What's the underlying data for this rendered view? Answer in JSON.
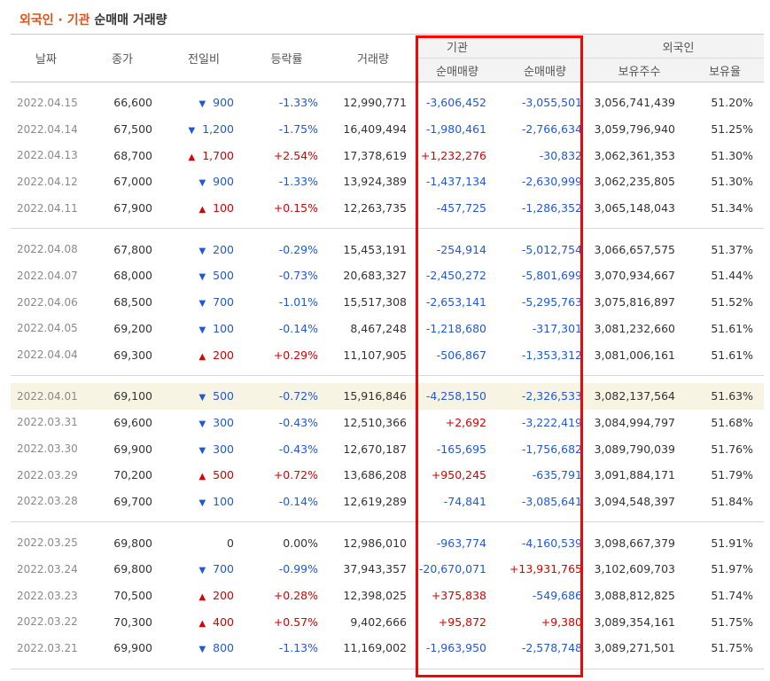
{
  "title": {
    "part1": "외국인 · 기관",
    "part2": " 순매매 거래량"
  },
  "headers": {
    "date": "날짜",
    "close": "종가",
    "change": "전일비",
    "rate": "등락률",
    "volume": "거래량",
    "inst_group": "기관",
    "inst_net": "순매매량",
    "foreign_group": "외국인",
    "foreign_net": "순매매량",
    "holdings": "보유주수",
    "ratio": "보유율"
  },
  "colors": {
    "up": "#d80000",
    "down": "#1f5ad6",
    "highlight_box": "#ff0000",
    "title_accent": "#e0501b"
  },
  "groups": [
    [
      {
        "date": "2022.04.15",
        "close": "66,600",
        "dir": "down",
        "change": "900",
        "rate": "-1.33%",
        "volume": "12,990,771",
        "inst": "-3,606,452",
        "foreign": "-3,055,501",
        "holdings": "3,056,741,439",
        "ratio": "51.20%"
      },
      {
        "date": "2022.04.14",
        "close": "67,500",
        "dir": "down",
        "change": "1,200",
        "rate": "-1.75%",
        "volume": "16,409,494",
        "inst": "-1,980,461",
        "foreign": "-2,766,634",
        "holdings": "3,059,796,940",
        "ratio": "51.25%"
      },
      {
        "date": "2022.04.13",
        "close": "68,700",
        "dir": "up",
        "change": "1,700",
        "rate": "+2.54%",
        "volume": "17,378,619",
        "inst": "+1,232,276",
        "foreign": "-30,832",
        "holdings": "3,062,361,353",
        "ratio": "51.30%"
      },
      {
        "date": "2022.04.12",
        "close": "67,000",
        "dir": "down",
        "change": "900",
        "rate": "-1.33%",
        "volume": "13,924,389",
        "inst": "-1,437,134",
        "foreign": "-2,630,999",
        "holdings": "3,062,235,805",
        "ratio": "51.30%"
      },
      {
        "date": "2022.04.11",
        "close": "67,900",
        "dir": "up",
        "change": "100",
        "rate": "+0.15%",
        "volume": "12,263,735",
        "inst": "-457,725",
        "foreign": "-1,286,352",
        "holdings": "3,065,148,043",
        "ratio": "51.34%"
      }
    ],
    [
      {
        "date": "2022.04.08",
        "close": "67,800",
        "dir": "down",
        "change": "200",
        "rate": "-0.29%",
        "volume": "15,453,191",
        "inst": "-254,914",
        "foreign": "-5,012,754",
        "holdings": "3,066,657,575",
        "ratio": "51.37%"
      },
      {
        "date": "2022.04.07",
        "close": "68,000",
        "dir": "down",
        "change": "500",
        "rate": "-0.73%",
        "volume": "20,683,327",
        "inst": "-2,450,272",
        "foreign": "-5,801,699",
        "holdings": "3,070,934,667",
        "ratio": "51.44%"
      },
      {
        "date": "2022.04.06",
        "close": "68,500",
        "dir": "down",
        "change": "700",
        "rate": "-1.01%",
        "volume": "15,517,308",
        "inst": "-2,653,141",
        "foreign": "-5,295,763",
        "holdings": "3,075,816,897",
        "ratio": "51.52%"
      },
      {
        "date": "2022.04.05",
        "close": "69,200",
        "dir": "down",
        "change": "100",
        "rate": "-0.14%",
        "volume": "8,467,248",
        "inst": "-1,218,680",
        "foreign": "-317,301",
        "holdings": "3,081,232,660",
        "ratio": "51.61%"
      },
      {
        "date": "2022.04.04",
        "close": "69,300",
        "dir": "up",
        "change": "200",
        "rate": "+0.29%",
        "volume": "11,107,905",
        "inst": "-506,867",
        "foreign": "-1,353,312",
        "holdings": "3,081,006,161",
        "ratio": "51.61%"
      }
    ],
    [
      {
        "date": "2022.04.01",
        "close": "69,100",
        "dir": "down",
        "change": "500",
        "rate": "-0.72%",
        "volume": "15,916,846",
        "inst": "-4,258,150",
        "foreign": "-2,326,533",
        "holdings": "3,082,137,564",
        "ratio": "51.63%",
        "highlight": true
      },
      {
        "date": "2022.03.31",
        "close": "69,600",
        "dir": "down",
        "change": "300",
        "rate": "-0.43%",
        "volume": "12,510,366",
        "inst": "+2,692",
        "foreign": "-3,222,419",
        "holdings": "3,084,994,797",
        "ratio": "51.68%"
      },
      {
        "date": "2022.03.30",
        "close": "69,900",
        "dir": "down",
        "change": "300",
        "rate": "-0.43%",
        "volume": "12,670,187",
        "inst": "-165,695",
        "foreign": "-1,756,682",
        "holdings": "3,089,790,039",
        "ratio": "51.76%"
      },
      {
        "date": "2022.03.29",
        "close": "70,200",
        "dir": "up",
        "change": "500",
        "rate": "+0.72%",
        "volume": "13,686,208",
        "inst": "+950,245",
        "foreign": "-635,791",
        "holdings": "3,091,884,171",
        "ratio": "51.79%"
      },
      {
        "date": "2022.03.28",
        "close": "69,700",
        "dir": "down",
        "change": "100",
        "rate": "-0.14%",
        "volume": "12,619,289",
        "inst": "-74,841",
        "foreign": "-3,085,641",
        "holdings": "3,094,548,397",
        "ratio": "51.84%"
      }
    ],
    [
      {
        "date": "2022.03.25",
        "close": "69,800",
        "dir": "none",
        "change": "0",
        "rate": "0.00%",
        "volume": "12,986,010",
        "inst": "-963,774",
        "foreign": "-4,160,539",
        "holdings": "3,098,667,379",
        "ratio": "51.91%"
      },
      {
        "date": "2022.03.24",
        "close": "69,800",
        "dir": "down",
        "change": "700",
        "rate": "-0.99%",
        "volume": "37,943,357",
        "inst": "-20,670,071",
        "foreign": "+13,931,765",
        "holdings": "3,102,609,703",
        "ratio": "51.97%"
      },
      {
        "date": "2022.03.23",
        "close": "70,500",
        "dir": "up",
        "change": "200",
        "rate": "+0.28%",
        "volume": "12,398,025",
        "inst": "+375,838",
        "foreign": "-549,686",
        "holdings": "3,088,812,825",
        "ratio": "51.74%"
      },
      {
        "date": "2022.03.22",
        "close": "70,300",
        "dir": "up",
        "change": "400",
        "rate": "+0.57%",
        "volume": "9,402,666",
        "inst": "+95,872",
        "foreign": "+9,380",
        "holdings": "3,089,354,161",
        "ratio": "51.75%"
      },
      {
        "date": "2022.03.21",
        "close": "69,900",
        "dir": "down",
        "change": "800",
        "rate": "-1.13%",
        "volume": "11,169,002",
        "inst": "-1,963,950",
        "foreign": "-2,578,748",
        "holdings": "3,089,271,501",
        "ratio": "51.75%"
      }
    ]
  ]
}
